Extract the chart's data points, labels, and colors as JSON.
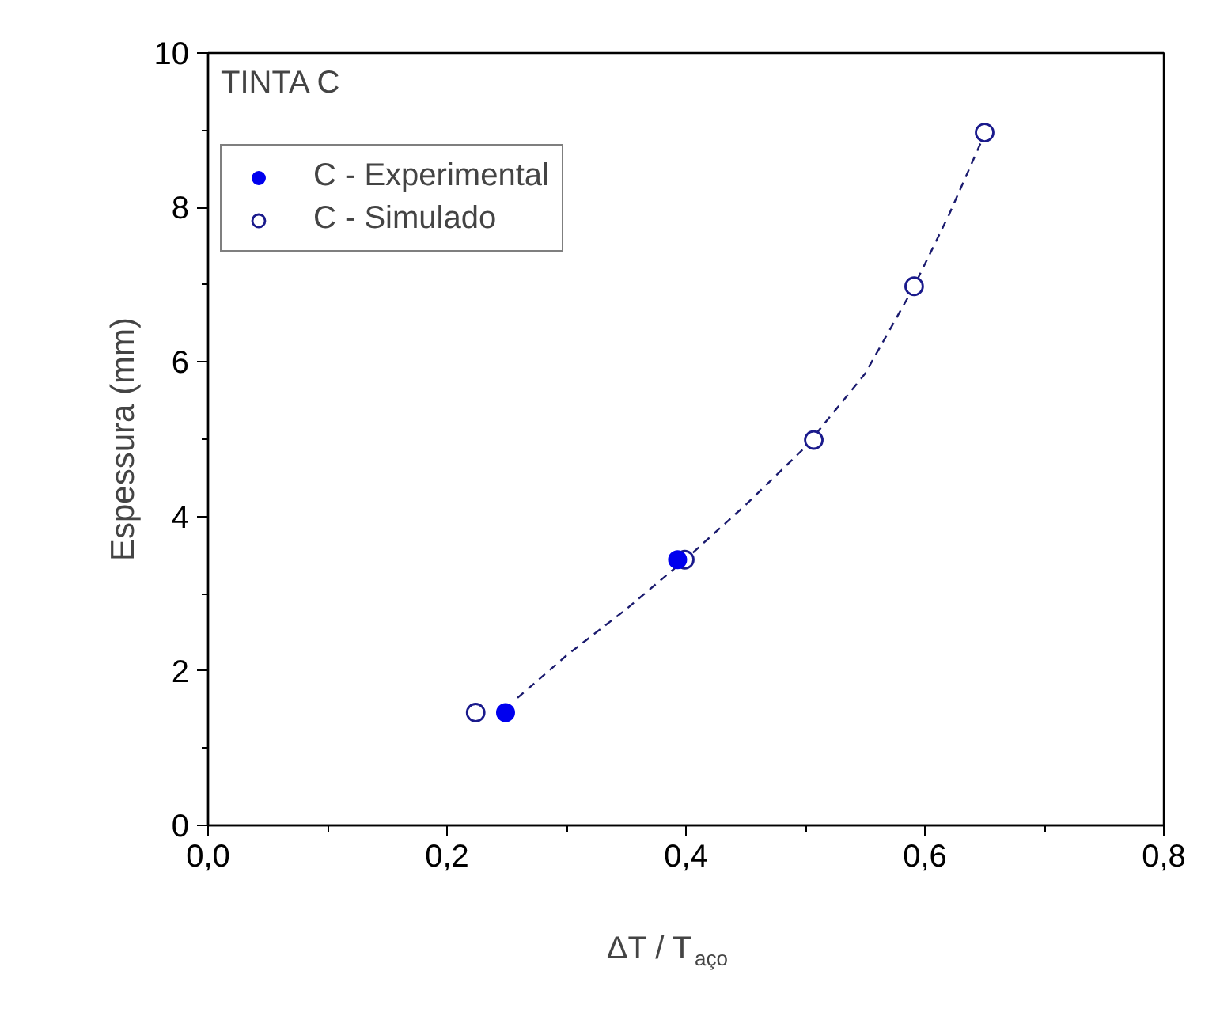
{
  "chart_data": {
    "type": "scatter",
    "xlabel": "ΔT / T$_{aço}$",
    "ylabel": "Espessura (mm)",
    "annotations": [
      "TINTA C"
    ],
    "xlim": [
      0,
      0.8
    ],
    "xticks": [
      {
        "value": 0,
        "label": "0,0"
      },
      {
        "value": 0.2,
        "label": "0,2"
      },
      {
        "value": 0.4,
        "label": "0,4"
      },
      {
        "value": 0.6,
        "label": "0,6"
      },
      {
        "value": 0.8,
        "label": "0,8"
      }
    ],
    "ylim": [
      0,
      10
    ],
    "yticks": [
      0,
      2,
      4,
      6,
      8,
      10
    ],
    "grid": false,
    "legend": "top left",
    "series": [
      {
        "name": "C - Experimental",
        "marker": "circle",
        "color": "#0000ee",
        "x": [
          0.249,
          0.393
        ],
        "values": [
          1.46,
          3.44
        ]
      },
      {
        "name": "C - Simulado",
        "marker": "circle_open",
        "color": "#1a1a8c",
        "x": [
          0.224,
          0.399,
          0.507,
          0.591,
          0.65
        ],
        "values": [
          1.46,
          3.44,
          4.99,
          6.98,
          8.97
        ]
      },
      {
        "type": "line",
        "line_style": "dashed",
        "color": "#1a1a6e",
        "x": [
          0.259,
          0.3,
          0.35,
          0.4,
          0.45,
          0.5,
          0.55,
          0.59,
          0.62,
          0.65
        ],
        "values": [
          1.65,
          2.2,
          2.8,
          3.45,
          4.15,
          4.9,
          5.85,
          6.95,
          7.9,
          8.95
        ]
      }
    ]
  }
}
